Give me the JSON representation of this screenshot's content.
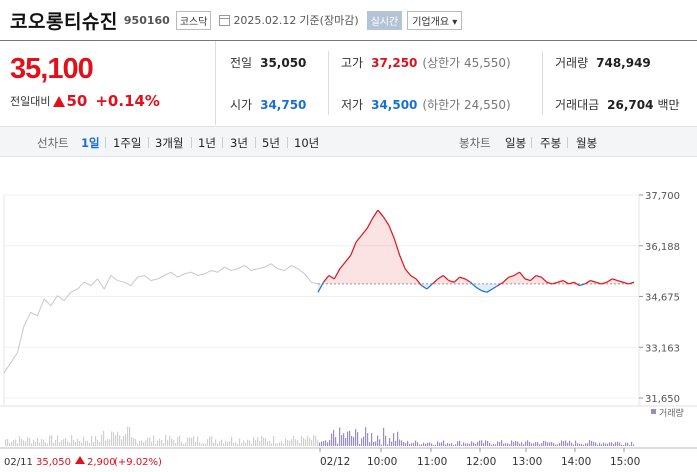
{
  "header": {
    "name": "코오롱티슈진",
    "code": "950160",
    "market": "코스닥",
    "date": "2025.02.12",
    "basis": "기준(장마감)",
    "live_button": "실시간",
    "info_button": "기업개요"
  },
  "price": {
    "current": "35,100",
    "change_label": "전일대비",
    "change": "50",
    "change_pct": "+0.14%",
    "direction": "up"
  },
  "stats": {
    "prev_close_label": "전일",
    "prev_close": "35,050",
    "high_label": "고가",
    "high": "37,250",
    "upper_limit": "(상한가 45,550)",
    "volume_label": "거래량",
    "volume": "748,949",
    "open_label": "시가",
    "open": "34,750",
    "low_label": "저가",
    "low": "34,500",
    "lower_limit": "(하한가 24,550)",
    "amount_label": "거래대금",
    "amount": "26,704",
    "amount_unit": "백만"
  },
  "period_tabs": {
    "line_label": "선차트",
    "line_items": [
      "1일",
      "1주일",
      "3개월",
      "1년",
      "3년",
      "5년",
      "10년"
    ],
    "active": "1일",
    "candle_label": "봉차트",
    "candle_items": [
      "일봉",
      "주봉",
      "월봉"
    ]
  },
  "chart_data": {
    "type": "line",
    "y_ticks": [
      "37,700",
      "36,188",
      "34,675",
      "33,163",
      "31,650"
    ],
    "ylim": [
      31650,
      37700
    ],
    "base_price": 35050,
    "x_labels": [
      "02/11",
      "02/12",
      "10:00",
      "11:00",
      "12:00",
      "13:00",
      "14:00",
      "15:00"
    ],
    "volume_label": "거래량",
    "prev_day_footer": {
      "date": "02/11",
      "close": "35,050",
      "change": "2,900",
      "change_pct": "(+9.02%)"
    },
    "prev_day_series": [
      32400,
      32700,
      33000,
      33800,
      34200,
      34100,
      34600,
      34400,
      34700,
      34550,
      34800,
      34900,
      35100,
      35000,
      35200,
      34900,
      35300,
      35150,
      35100,
      35000,
      35250,
      35300,
      35150,
      35200,
      35300,
      35400,
      35250,
      35350,
      35400,
      35300,
      35350,
      35450,
      35400,
      35550,
      35450,
      35500,
      35600,
      35450,
      35500,
      35550,
      35650,
      35500,
      35450,
      35600,
      35500,
      35350,
      35100,
      35050
    ],
    "today_series": [
      34800,
      35100,
      35300,
      35200,
      35500,
      35700,
      35900,
      36300,
      36500,
      36700,
      37000,
      37250,
      37050,
      36800,
      36400,
      35900,
      35500,
      35300,
      35200,
      35000,
      34900,
      35050,
      35200,
      35300,
      35150,
      35100,
      35250,
      35200,
      35100,
      34950,
      34850,
      34800,
      34900,
      35000,
      35100,
      35250,
      35300,
      35400,
      35200,
      35150,
      35300,
      35250,
      35100,
      35050,
      35100,
      35150,
      35050,
      35100,
      35000,
      35050,
      35150,
      35100,
      35050,
      35100,
      35200,
      35150,
      35100,
      35050,
      35100
    ]
  },
  "colors": {
    "up": "#e1111c",
    "down": "#1a6fd6",
    "prev_line": "#c8c8c8",
    "volume_today": "#9b8bc4",
    "volume_prev": "#cfcfcf"
  }
}
